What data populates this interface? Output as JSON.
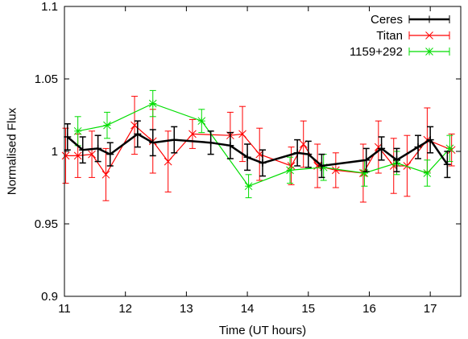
{
  "chart_data": {
    "type": "line",
    "xlabel": "Time (UT hours)",
    "ylabel": "Normalised Flux",
    "xlim": [
      11,
      17.5
    ],
    "ylim": [
      0.9,
      1.1
    ],
    "xticks": [
      "11",
      "12",
      "13",
      "14",
      "15",
      "16",
      "17"
    ],
    "yticks": [
      "0.9",
      "0.95",
      "1",
      "1.05",
      "1.1"
    ],
    "grid": false,
    "legend_position": "top-right",
    "series": [
      {
        "name": "Titan",
        "color": "#ff0000",
        "marker": "x",
        "points": [
          {
            "x": 11.02,
            "y": 0.997,
            "err": 0.019
          },
          {
            "x": 11.22,
            "y": 0.997,
            "err": 0.015
          },
          {
            "x": 11.45,
            "y": 0.998,
            "err": 0.016
          },
          {
            "x": 11.68,
            "y": 0.984,
            "err": 0.018
          },
          {
            "x": 12.15,
            "y": 1.018,
            "err": 0.02
          },
          {
            "x": 12.45,
            "y": 1.007,
            "err": 0.022
          },
          {
            "x": 12.7,
            "y": 0.993,
            "err": 0.021
          },
          {
            "x": 13.1,
            "y": 1.012,
            "err": 0.01
          },
          {
            "x": 13.72,
            "y": 1.011,
            "err": 0.016
          },
          {
            "x": 13.92,
            "y": 1.012,
            "err": 0.019
          },
          {
            "x": 14.2,
            "y": 0.998,
            "err": 0.018
          },
          {
            "x": 14.72,
            "y": 0.99,
            "err": 0.013
          },
          {
            "x": 14.92,
            "y": 1.005,
            "err": 0.016
          },
          {
            "x": 15.15,
            "y": 0.99,
            "err": 0.015
          },
          {
            "x": 15.45,
            "y": 0.987,
            "err": 0.012
          },
          {
            "x": 15.9,
            "y": 0.985,
            "err": 0.02
          },
          {
            "x": 16.15,
            "y": 1.003,
            "err": 0.018
          },
          {
            "x": 16.4,
            "y": 0.99,
            "err": 0.019
          },
          {
            "x": 16.62,
            "y": 0.99,
            "err": 0.021
          },
          {
            "x": 16.95,
            "y": 1.008,
            "err": 0.022
          },
          {
            "x": 17.35,
            "y": 1.001,
            "err": 0.011
          }
        ]
      },
      {
        "name": "1159+292",
        "color": "#00dd00",
        "marker": "asterisk",
        "points": [
          {
            "x": 11.22,
            "y": 1.014,
            "err": 0.01
          },
          {
            "x": 11.7,
            "y": 1.018,
            "err": 0.009
          },
          {
            "x": 12.45,
            "y": 1.033,
            "err": 0.009
          },
          {
            "x": 13.25,
            "y": 1.021,
            "err": 0.008
          },
          {
            "x": 14.02,
            "y": 0.976,
            "err": 0.008
          },
          {
            "x": 14.7,
            "y": 0.987,
            "err": 0.009
          },
          {
            "x": 15.25,
            "y": 0.989,
            "err": 0.009
          },
          {
            "x": 15.92,
            "y": 0.985,
            "err": 0.009
          },
          {
            "x": 16.45,
            "y": 0.992,
            "err": 0.008
          },
          {
            "x": 16.95,
            "y": 0.985,
            "err": 0.009
          },
          {
            "x": 17.32,
            "y": 1.002,
            "err": 0.009
          }
        ]
      },
      {
        "name": "Ceres",
        "color": "#000000",
        "marker": "plus",
        "points": [
          {
            "x": 11.05,
            "y": 1.01,
            "err": 0.009
          },
          {
            "x": 11.3,
            "y": 1.001,
            "err": 0.009
          },
          {
            "x": 11.55,
            "y": 1.002,
            "err": 0.009
          },
          {
            "x": 11.75,
            "y": 0.998,
            "err": 0.008
          },
          {
            "x": 12.2,
            "y": 1.012,
            "err": 0.009
          },
          {
            "x": 12.45,
            "y": 1.006,
            "err": 0.009
          },
          {
            "x": 12.8,
            "y": 1.008,
            "err": 0.009
          },
          {
            "x": 13.4,
            "y": 1.006,
            "err": 0.008
          },
          {
            "x": 13.72,
            "y": 1.004,
            "err": 0.009
          },
          {
            "x": 14.0,
            "y": 0.996,
            "err": 0.009
          },
          {
            "x": 14.25,
            "y": 0.992,
            "err": 0.009
          },
          {
            "x": 14.82,
            "y": 0.999,
            "err": 0.009
          },
          {
            "x": 15.0,
            "y": 0.998,
            "err": 0.009
          },
          {
            "x": 15.22,
            "y": 0.99,
            "err": 0.008
          },
          {
            "x": 15.95,
            "y": 0.994,
            "err": 0.008
          },
          {
            "x": 16.2,
            "y": 1.002,
            "err": 0.008
          },
          {
            "x": 16.45,
            "y": 0.994,
            "err": 0.008
          },
          {
            "x": 16.8,
            "y": 1.003,
            "err": 0.008
          },
          {
            "x": 17.0,
            "y": 1.008,
            "err": 0.009
          },
          {
            "x": 17.28,
            "y": 0.991,
            "err": 0.009
          }
        ]
      }
    ],
    "legend_order": [
      "Ceres",
      "Titan",
      "1159+292"
    ]
  }
}
